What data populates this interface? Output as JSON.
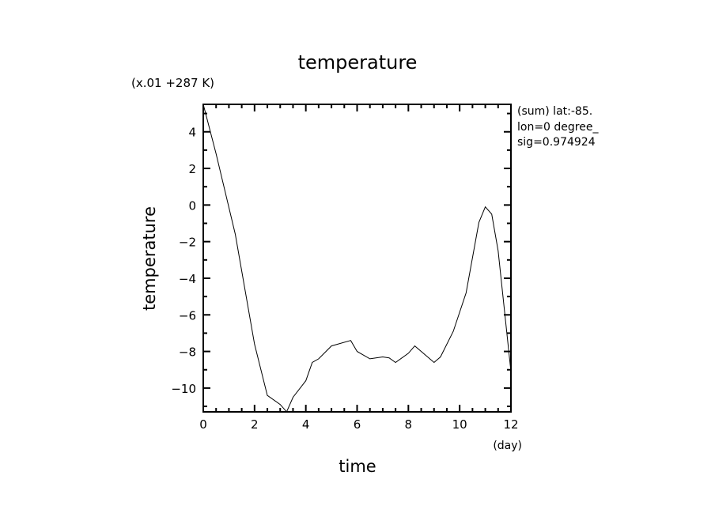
{
  "chart_data": {
    "type": "line",
    "title": "temperature",
    "scale_note": "(x.01 +287 K)",
    "xlabel": "time",
    "xunit": "(day)",
    "ylabel": "temperature",
    "info": [
      "(sum) lat:-85.",
      "lon=0 degree_",
      "sig=0.974924"
    ],
    "xlim": [
      0,
      12
    ],
    "ylim": [
      -11.3,
      5.5
    ],
    "xticks": [
      0,
      2,
      4,
      6,
      8,
      10,
      12
    ],
    "xtick_labels": [
      "0",
      "2",
      "4",
      "6",
      "8",
      "10",
      "12"
    ],
    "yticks": [
      4,
      2,
      0,
      -2,
      -4,
      -6,
      -8,
      -10
    ],
    "ytick_labels": [
      "4",
      "2",
      "0",
      "−2",
      "−4",
      "−6",
      "−8",
      "−10"
    ],
    "grid": false,
    "legend": "none",
    "series": [
      {
        "name": "temperature",
        "x": [
          0,
          0.5,
          1.25,
          2,
          2.5,
          3,
          3.25,
          3.5,
          4,
          4.25,
          4.5,
          5,
          5.75,
          6,
          6.5,
          7,
          7.25,
          7.5,
          8,
          8.25,
          9,
          9.25,
          9.75,
          10.25,
          10.75,
          11,
          11.25,
          11.5,
          12
        ],
        "values": [
          5.5,
          2.8,
          -1.6,
          -7.6,
          -10.4,
          -10.9,
          -11.3,
          -10.5,
          -9.6,
          -8.6,
          -8.4,
          -7.7,
          -7.4,
          -8.0,
          -8.4,
          -8.3,
          -8.35,
          -8.6,
          -8.1,
          -7.7,
          -8.6,
          -8.3,
          -6.9,
          -4.8,
          -0.95,
          -0.1,
          -0.5,
          -2.5,
          -9.1
        ]
      }
    ]
  }
}
